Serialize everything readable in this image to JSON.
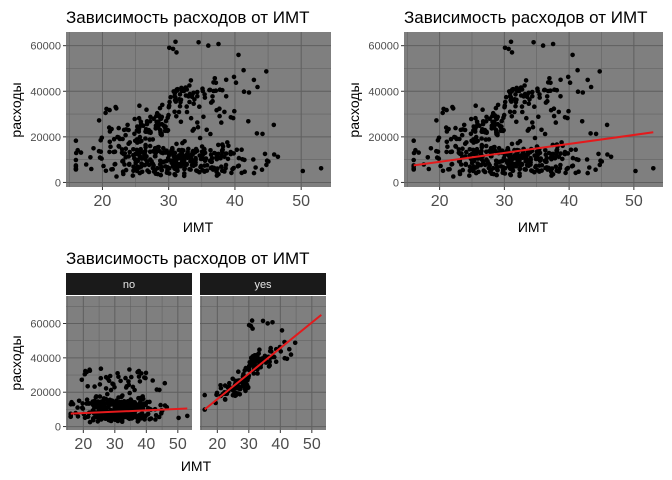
{
  "chart_data": [
    {
      "type": "scatter",
      "title": "Зависимость расходов от ИМТ",
      "xlabel": "ИМТ",
      "ylabel": "расходы",
      "xlim": [
        14.5,
        54.5
      ],
      "ylim": [
        -2000,
        66000
      ],
      "x_ticks": [
        20,
        30,
        40,
        50
      ],
      "y_ticks": [
        0,
        20000,
        40000,
        60000
      ],
      "x_tick_labels": [
        "20",
        "30",
        "40",
        "50"
      ],
      "y_tick_labels": [
        "0",
        "20000",
        "40000",
        "60000"
      ],
      "grid": true,
      "trend_line": null
    },
    {
      "type": "scatter",
      "title": "Зависимость расходов от ИМТ",
      "xlabel": "ИМТ",
      "ylabel": "расходы",
      "xlim": [
        14.5,
        54.5
      ],
      "ylim": [
        -2000,
        66000
      ],
      "x_ticks": [
        20,
        30,
        40,
        50
      ],
      "y_ticks": [
        0,
        20000,
        40000,
        60000
      ],
      "x_tick_labels": [
        "20",
        "30",
        "40",
        "50"
      ],
      "y_tick_labels": [
        "0",
        "20000",
        "40000",
        "60000"
      ],
      "grid": true,
      "trend_line": {
        "x": [
          16,
          53
        ],
        "y": [
          7500,
          22000
        ],
        "color": "#e41a1c"
      }
    },
    {
      "type": "scatter",
      "title": "Зависимость расходов от ИМТ",
      "xlabel": "ИМТ",
      "ylabel": "расходы",
      "xlim": [
        14.5,
        54.5
      ],
      "ylim": [
        -2000,
        76000
      ],
      "x_ticks": [
        20,
        30,
        40,
        50
      ],
      "y_ticks": [
        0,
        20000,
        40000,
        60000
      ],
      "x_tick_labels": [
        "20",
        "30",
        "40",
        "50"
      ],
      "y_tick_labels": [
        "0",
        "20000",
        "40000",
        "60000"
      ],
      "grid": true,
      "facets": [
        {
          "label": "no",
          "trend_line": {
            "x": [
              16,
              53
            ],
            "y": [
              7500,
              10500
            ],
            "color": "#e41a1c"
          }
        },
        {
          "label": "yes",
          "trend_line": {
            "x": [
              16,
              53
            ],
            "y": [
              10000,
              65000
            ],
            "color": "#e41a1c"
          }
        }
      ]
    }
  ],
  "colors": {
    "panel_bg": "#7f7f7f",
    "grid": "#5f5f5f",
    "point": "#000000",
    "strip_bg": "#1a1a1a",
    "strip_text": "#e6e6e6",
    "tick_text": "#4d4d4d"
  }
}
